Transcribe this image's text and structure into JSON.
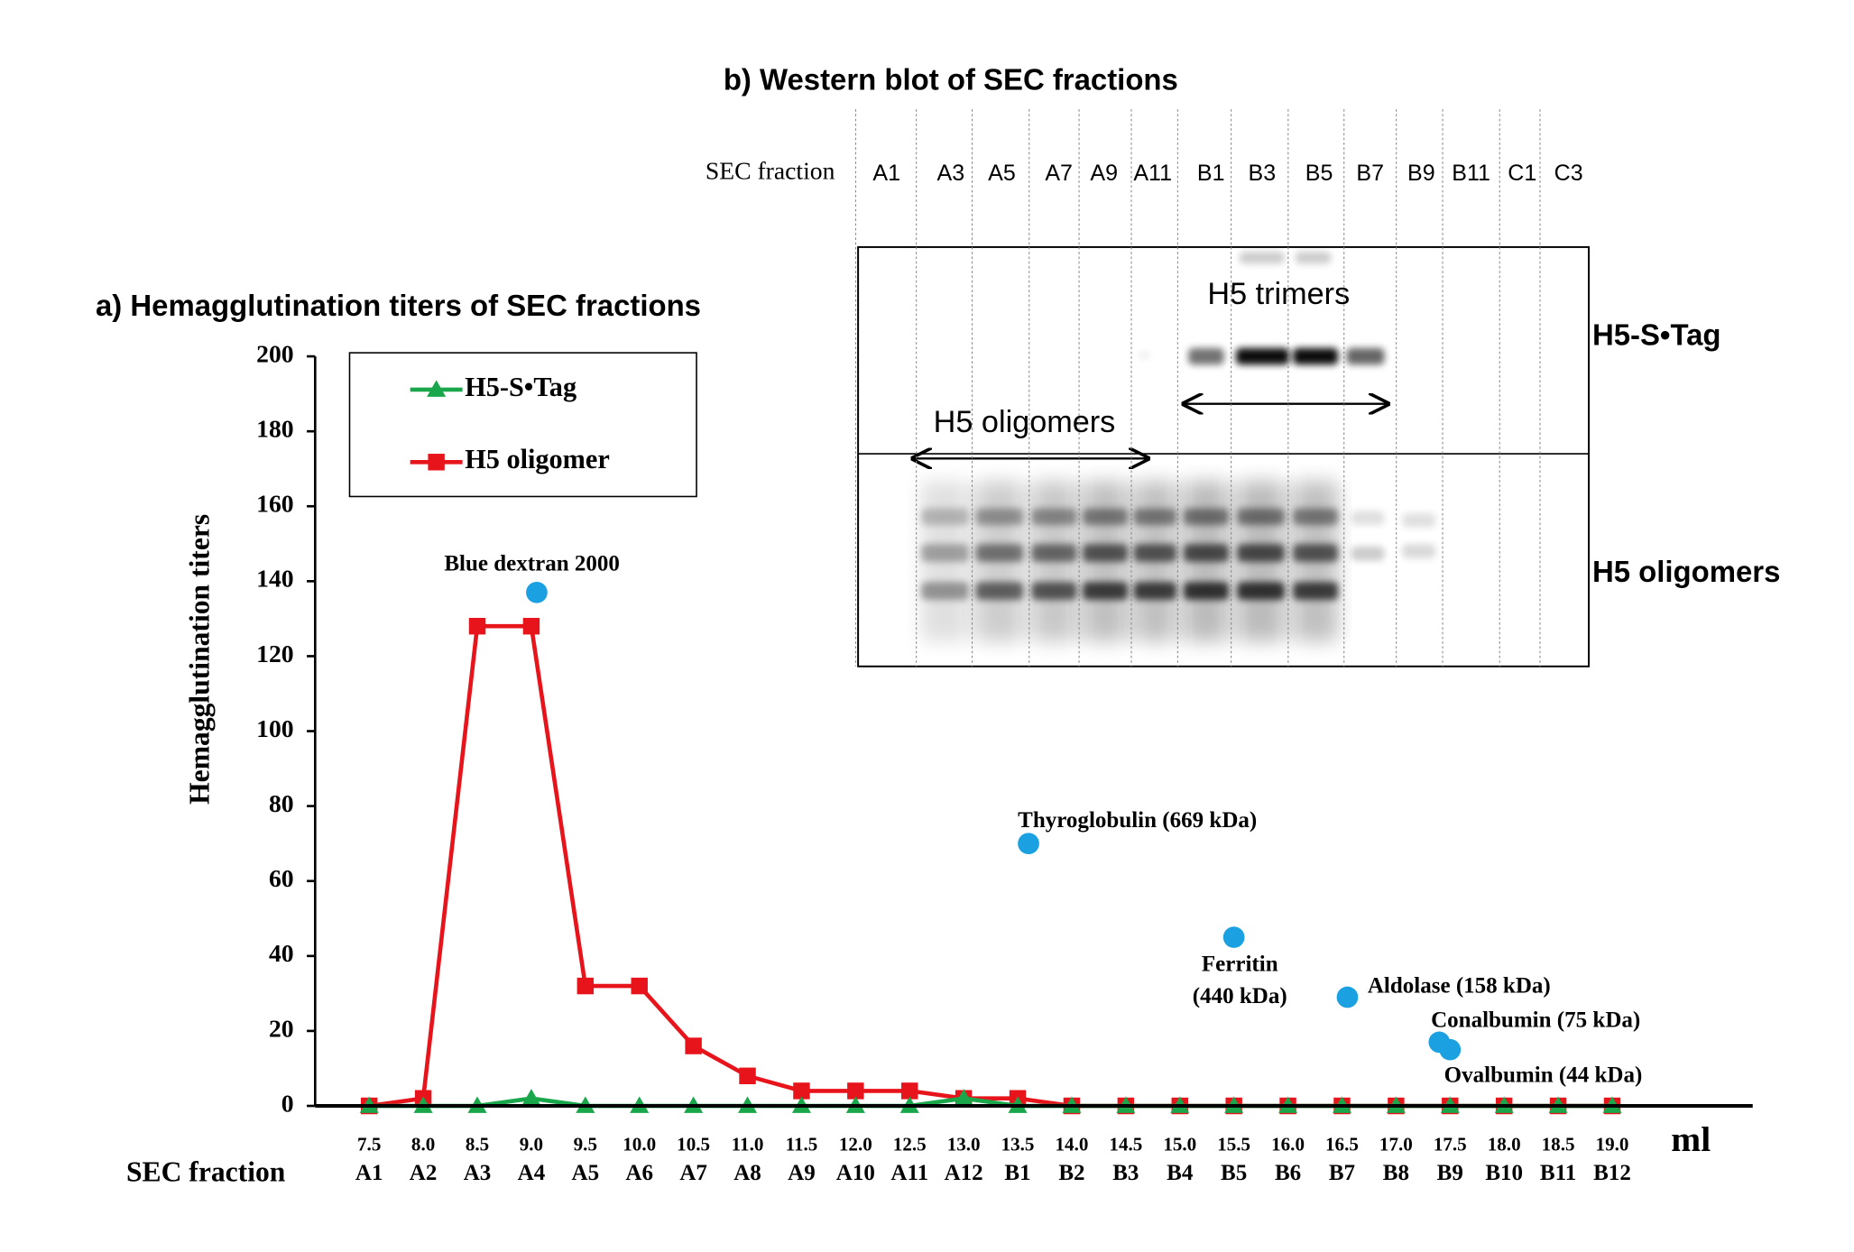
{
  "chart_data": {
    "type": "line",
    "title": "a) Hemagglutination titers of SEC fractions",
    "y_label": "Hemagglutination titers",
    "x_label": "SEC fraction",
    "x_unit": "ml",
    "x": [
      7.5,
      8,
      8.5,
      9,
      9.5,
      10,
      10.5,
      11,
      11.5,
      12,
      12.5,
      13,
      13.5,
      14,
      14.5,
      15,
      15.5,
      16,
      16.5,
      17,
      17.5,
      18,
      18.5,
      19
    ],
    "xticks": [
      {
        "value": 7.5,
        "label": "7.5"
      },
      {
        "value": 8,
        "label": "8.0"
      },
      {
        "value": 8.5,
        "label": "8.5"
      },
      {
        "value": 9,
        "label": "9.0"
      },
      {
        "value": 9.5,
        "label": "9.5"
      },
      {
        "value": 10,
        "label": "10.0"
      },
      {
        "value": 10.5,
        "label": "10.5"
      },
      {
        "value": 11,
        "label": "11.0"
      },
      {
        "value": 11.5,
        "label": "11.5"
      },
      {
        "value": 12,
        "label": "12.0"
      },
      {
        "value": 12.5,
        "label": "12.5"
      },
      {
        "value": 13,
        "label": "13.0"
      },
      {
        "value": 13.5,
        "label": "13.5"
      },
      {
        "value": 14,
        "label": "14.0"
      },
      {
        "value": 14.5,
        "label": "14.5"
      },
      {
        "value": 15,
        "label": "15.0"
      },
      {
        "value": 15.5,
        "label": "15.5"
      },
      {
        "value": 16,
        "label": "16.0"
      },
      {
        "value": 16.5,
        "label": "16.5"
      },
      {
        "value": 17,
        "label": "17.0"
      },
      {
        "value": 17.5,
        "label": "17.5"
      },
      {
        "value": 18,
        "label": "18.0"
      },
      {
        "value": 18.5,
        "label": "18.5"
      },
      {
        "value": 19,
        "label": "19.0"
      }
    ],
    "fractions": [
      "A1",
      "A2",
      "A3",
      "A4",
      "A5",
      "A6",
      "A7",
      "A8",
      "A9",
      "A10",
      "A11",
      "A12",
      "B1",
      "B2",
      "B3",
      "B4",
      "B5",
      "B6",
      "B7",
      "B8",
      "B9",
      "B10",
      "B11",
      "B12"
    ],
    "xlim": [
      7,
      20.3
    ],
    "ylim": [
      0,
      200
    ],
    "yticks": [
      0,
      20,
      40,
      60,
      80,
      100,
      120,
      140,
      160,
      180,
      200
    ],
    "series": [
      {
        "name": "H5-S•Tag",
        "color": "#1aa64a",
        "marker": "triangle",
        "values": [
          0,
          0,
          0,
          2,
          0,
          0,
          0,
          0,
          0,
          0,
          0,
          2,
          0,
          0,
          0,
          0,
          0,
          0,
          0,
          0,
          0,
          0,
          0,
          0
        ]
      },
      {
        "name": "H5 oligomer",
        "color": "#e8141b",
        "marker": "square",
        "values": [
          0,
          2,
          128,
          128,
          32,
          32,
          16,
          8,
          4,
          4,
          4,
          2,
          2,
          0,
          0,
          0,
          0,
          0,
          0,
          0,
          0,
          0,
          0,
          0
        ]
      }
    ],
    "standards": {
      "color": "#1ba1e2",
      "points": [
        {
          "label": [
            "Blue dextran 2000"
          ],
          "x": 9.05,
          "y": 137
        },
        {
          "label": [
            "Thyroglobulin (669 kDa)"
          ],
          "x": 13.6,
          "y": 70
        },
        {
          "label": [
            "Ferritin",
            "(440 kDa)"
          ],
          "x": 15.5,
          "y": 45
        },
        {
          "label": [
            "Aldolase (158 kDa)"
          ],
          "x": 16.55,
          "y": 29
        },
        {
          "label": [
            "Conalbumin (75 kDa)"
          ],
          "x": 17.4,
          "y": 17
        },
        {
          "label": [
            "Ovalbumin (44 kDa)"
          ],
          "x": 17.5,
          "y": 15
        }
      ]
    }
  },
  "blot": {
    "title": "b) Western blot of SEC fractions",
    "lane_header": "SEC fraction",
    "lanes": [
      "A1",
      "A3",
      "A5",
      "A7",
      "A9",
      "A11",
      "B1",
      "B3",
      "B5",
      "B7",
      "B9",
      "B11",
      "C1",
      "C3"
    ],
    "row_labels": [
      "H5-S•Tag",
      "H5 oligomers"
    ],
    "annotations": [
      "H5 trimers",
      "H5 oligomers"
    ]
  }
}
